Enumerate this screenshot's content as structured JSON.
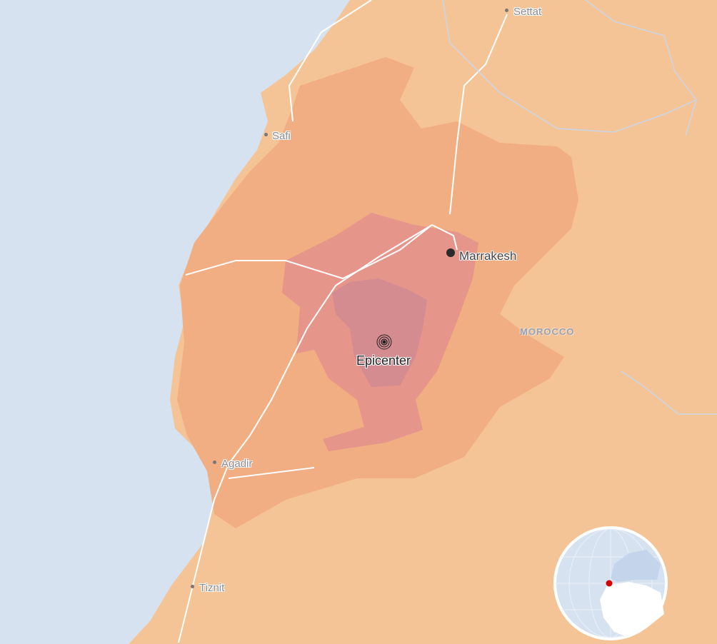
{
  "map": {
    "colors": {
      "sea": "#d6e2f0",
      "land": "#f5c496",
      "zone_outer": "#f0ae82",
      "zone_middle": "#e6958a",
      "zone_inner": "#d48c90",
      "roads": "#ffffff",
      "epicenter_marker": "#222222",
      "globe_location": "#d40000"
    },
    "cities": [
      {
        "name": "Settat"
      },
      {
        "name": "Safi"
      },
      {
        "name": "Marrakesh"
      },
      {
        "name": "Agadir"
      },
      {
        "name": "Tiznit"
      }
    ],
    "country_label": "MOROCCO",
    "epicenter_label": "Epicenter",
    "locator_globe": {
      "icon": "globe-icon",
      "marker": "red-dot"
    }
  }
}
